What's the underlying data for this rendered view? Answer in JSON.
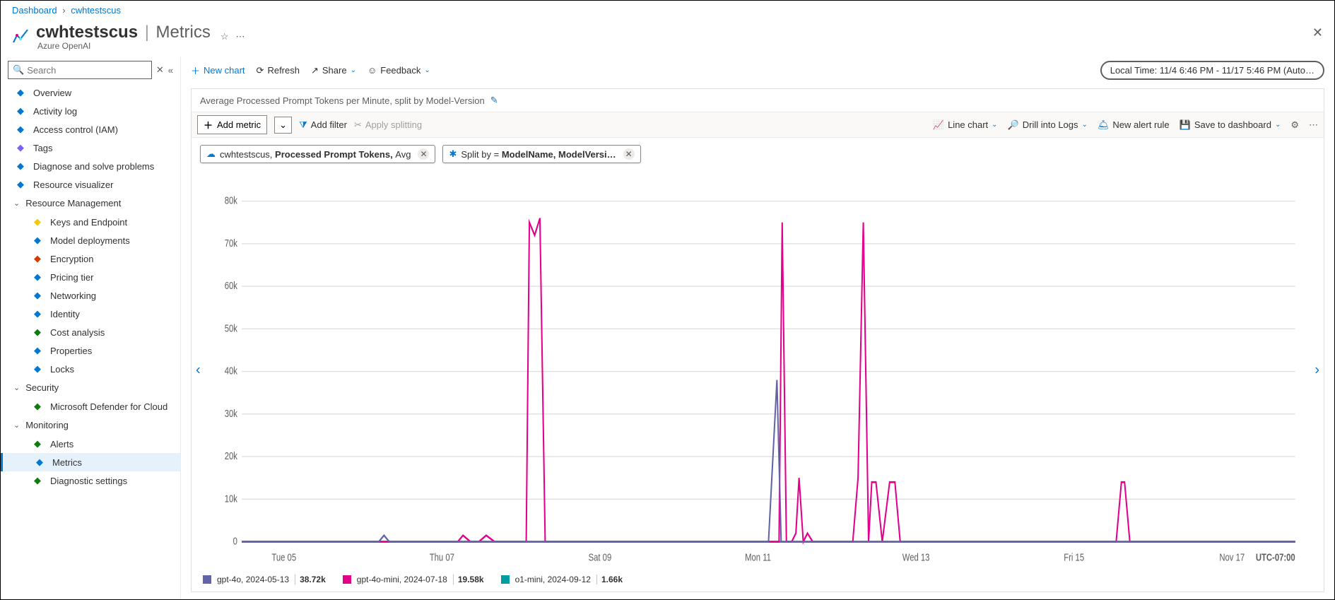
{
  "breadcrumb": {
    "root": "Dashboard",
    "current": "cwhtestscus"
  },
  "header": {
    "name": "cwhtestscus",
    "section": "Metrics",
    "service": "Azure OpenAI"
  },
  "search": {
    "placeholder": "Search"
  },
  "nav": {
    "top": [
      {
        "label": "Overview",
        "icon": "#0078d4"
      },
      {
        "label": "Activity log",
        "icon": "#0078d4"
      },
      {
        "label": "Access control (IAM)",
        "icon": "#0078d4"
      },
      {
        "label": "Tags",
        "icon": "#7b61ff"
      },
      {
        "label": "Diagnose and solve problems",
        "icon": "#0078d4"
      },
      {
        "label": "Resource visualizer",
        "icon": "#0078d4"
      }
    ],
    "groups": [
      {
        "label": "Resource Management",
        "items": [
          {
            "label": "Keys and Endpoint",
            "icon": "#f2c811"
          },
          {
            "label": "Model deployments",
            "icon": "#0078d4"
          },
          {
            "label": "Encryption",
            "icon": "#d83b01"
          },
          {
            "label": "Pricing tier",
            "icon": "#0078d4"
          },
          {
            "label": "Networking",
            "icon": "#0078d4"
          },
          {
            "label": "Identity",
            "icon": "#0078d4"
          },
          {
            "label": "Cost analysis",
            "icon": "#107c10"
          },
          {
            "label": "Properties",
            "icon": "#0078d4"
          },
          {
            "label": "Locks",
            "icon": "#0078d4"
          }
        ]
      },
      {
        "label": "Security",
        "items": [
          {
            "label": "Microsoft Defender for Cloud",
            "icon": "#107c10"
          }
        ]
      },
      {
        "label": "Monitoring",
        "items": [
          {
            "label": "Alerts",
            "icon": "#107c10"
          },
          {
            "label": "Metrics",
            "icon": "#0078d4",
            "selected": true
          },
          {
            "label": "Diagnostic settings",
            "icon": "#107c10"
          }
        ]
      }
    ]
  },
  "toolbar": {
    "newChart": "New chart",
    "refresh": "Refresh",
    "share": "Share",
    "feedback": "Feedback",
    "timeRange": "Local Time: 11/4 6:46 PM - 11/17 5:46 PM (Auto…"
  },
  "card": {
    "title": "Average Processed Prompt Tokens per Minute, split by Model-Version",
    "addMetric": "Add metric",
    "addFilter": "Add filter",
    "applySplitting": "Apply splitting",
    "lineChart": "Line chart",
    "drillLogs": "Drill into Logs",
    "newAlert": "New alert rule",
    "saveDash": "Save to dashboard"
  },
  "pills": {
    "metric": {
      "resource": "cwhtestscus, ",
      "name": "Processed Prompt Tokens, ",
      "agg": "Avg"
    },
    "split": {
      "prefix": "Split by = ",
      "value": "ModelName, ModelVersi…"
    }
  },
  "chart": {
    "type": "line",
    "ylim": [
      0,
      85000
    ],
    "yticks": [
      0,
      10000,
      20000,
      30000,
      40000,
      50000,
      60000,
      70000,
      80000
    ],
    "yticklabels": [
      "0",
      "10k",
      "20k",
      "30k",
      "40k",
      "50k",
      "60k",
      "70k",
      "80k"
    ],
    "xticks": [
      0.04,
      0.19,
      0.34,
      0.49,
      0.64,
      0.79,
      0.94
    ],
    "xticklabels": [
      "Tue 05",
      "Thu 07",
      "Sat 09",
      "Mon 11",
      "Wed 13",
      "Fri 15",
      "Nov 17"
    ],
    "tz": "UTC-07:00",
    "grid_color": "#e1dfdd",
    "axis_color": "#a19f9d",
    "label_fontsize": 11,
    "series": [
      {
        "name": "gpt-4o, 2024-05-13",
        "color": "#6264a7",
        "value": "38.72k",
        "points": [
          [
            0,
            0
          ],
          [
            0.13,
            0
          ],
          [
            0.135,
            1500
          ],
          [
            0.14,
            0
          ],
          [
            0.5,
            0
          ],
          [
            0.508,
            38000
          ],
          [
            0.512,
            0
          ],
          [
            1,
            0
          ]
        ]
      },
      {
        "name": "gpt-4o-mini, 2024-07-18",
        "color": "#e3008c",
        "value": "19.58k",
        "points": [
          [
            0,
            0
          ],
          [
            0.205,
            0
          ],
          [
            0.21,
            1500
          ],
          [
            0.217,
            0
          ],
          [
            0.225,
            0
          ],
          [
            0.232,
            1500
          ],
          [
            0.24,
            0
          ],
          [
            0.27,
            0
          ],
          [
            0.273,
            75000
          ],
          [
            0.278,
            72000
          ],
          [
            0.283,
            76000
          ],
          [
            0.288,
            0
          ],
          [
            0.51,
            0
          ],
          [
            0.513,
            75000
          ],
          [
            0.517,
            0
          ],
          [
            0.522,
            0
          ],
          [
            0.526,
            2000
          ],
          [
            0.529,
            15000
          ],
          [
            0.533,
            0
          ],
          [
            0.537,
            2000
          ],
          [
            0.542,
            0
          ],
          [
            0.58,
            0
          ],
          [
            0.585,
            15000
          ],
          [
            0.59,
            75000
          ],
          [
            0.595,
            0
          ],
          [
            0.598,
            14000
          ],
          [
            0.602,
            14000
          ],
          [
            0.608,
            0
          ],
          [
            0.615,
            14000
          ],
          [
            0.62,
            14000
          ],
          [
            0.625,
            0
          ],
          [
            0.83,
            0
          ],
          [
            0.835,
            14000
          ],
          [
            0.838,
            14000
          ],
          [
            0.843,
            0
          ],
          [
            1,
            0
          ]
        ]
      },
      {
        "name": "o1-mini, 2024-09-12",
        "color": "#009ca6",
        "value": "1.66k",
        "points": [
          [
            0,
            0
          ],
          [
            1,
            0
          ]
        ]
      }
    ]
  }
}
